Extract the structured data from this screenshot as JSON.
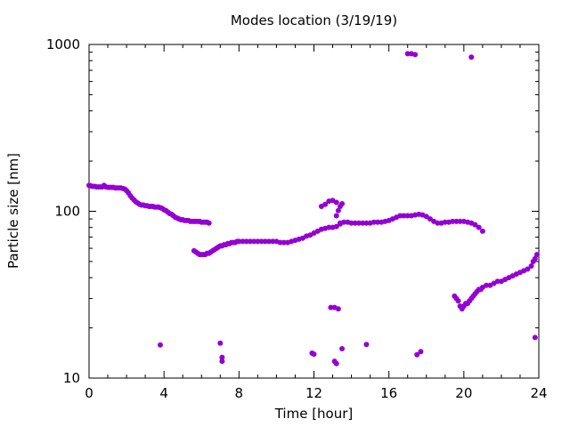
{
  "chart_data": {
    "type": "scatter",
    "title": "Modes location (3/19/19)",
    "xlabel": "Time [hour]",
    "ylabel": "Particle size [nm]",
    "xlim": [
      0,
      24
    ],
    "ylim": [
      10,
      1000
    ],
    "yscale": "log",
    "grid": false,
    "x_ticks": [
      0,
      4,
      8,
      12,
      16,
      20,
      24
    ],
    "x_tick_labels": [
      "0",
      "4",
      "8",
      "12",
      "16",
      "20",
      "24"
    ],
    "y_ticks": [
      10,
      100,
      1000
    ],
    "y_tick_labels": [
      "10",
      "100",
      "1000"
    ],
    "marker_color": "#9400d3",
    "series": [
      {
        "points": [
          [
            0.0,
            143
          ],
          [
            0.1,
            142
          ],
          [
            0.2,
            141
          ],
          [
            0.3,
            141
          ],
          [
            0.4,
            140
          ],
          [
            0.5,
            140
          ],
          [
            0.6,
            140
          ],
          [
            0.7,
            140
          ],
          [
            0.8,
            143
          ],
          [
            0.9,
            140
          ],
          [
            1.0,
            139
          ],
          [
            1.1,
            139
          ],
          [
            1.2,
            139
          ],
          [
            1.3,
            139
          ],
          [
            1.4,
            138
          ],
          [
            1.5,
            138
          ],
          [
            1.6,
            138
          ],
          [
            1.7,
            138
          ],
          [
            1.8,
            137
          ],
          [
            1.9,
            136
          ],
          [
            2.0,
            133
          ],
          [
            2.1,
            129
          ],
          [
            2.2,
            124
          ],
          [
            2.3,
            120
          ],
          [
            2.4,
            117
          ],
          [
            2.5,
            114
          ],
          [
            2.6,
            112
          ],
          [
            2.7,
            110
          ],
          [
            2.8,
            109
          ],
          [
            2.9,
            109
          ],
          [
            3.0,
            108
          ],
          [
            3.1,
            108
          ],
          [
            3.2,
            107
          ],
          [
            3.3,
            107
          ],
          [
            3.4,
            107
          ],
          [
            3.5,
            106
          ],
          [
            3.6,
            106
          ],
          [
            3.7,
            106
          ],
          [
            3.8,
            105
          ],
          [
            3.9,
            104
          ],
          [
            4.0,
            102
          ],
          [
            4.1,
            101
          ],
          [
            4.2,
            99
          ],
          [
            4.3,
            97
          ],
          [
            4.4,
            96
          ],
          [
            4.5,
            94
          ],
          [
            4.6,
            92
          ],
          [
            4.7,
            91
          ],
          [
            4.8,
            90
          ],
          [
            4.9,
            89
          ],
          [
            5.0,
            89
          ],
          [
            5.1,
            88
          ],
          [
            5.2,
            88
          ],
          [
            5.3,
            88
          ],
          [
            5.4,
            87
          ],
          [
            5.5,
            87
          ],
          [
            5.6,
            87
          ],
          [
            5.7,
            87
          ],
          [
            5.8,
            87
          ],
          [
            5.9,
            87
          ],
          [
            6.0,
            86
          ],
          [
            6.1,
            86
          ],
          [
            6.2,
            86
          ],
          [
            6.3,
            86
          ],
          [
            6.4,
            85
          ],
          [
            5.6,
            58
          ],
          [
            5.7,
            57
          ],
          [
            5.8,
            56
          ],
          [
            5.9,
            55
          ],
          [
            6.0,
            55
          ],
          [
            6.1,
            55
          ],
          [
            6.2,
            55
          ],
          [
            6.3,
            56
          ],
          [
            6.4,
            56
          ],
          [
            6.5,
            57
          ],
          [
            6.6,
            58
          ],
          [
            6.7,
            59
          ],
          [
            6.8,
            60
          ],
          [
            6.9,
            61
          ],
          [
            7.0,
            62
          ],
          [
            7.1,
            62
          ],
          [
            7.2,
            63
          ],
          [
            7.3,
            63
          ],
          [
            7.4,
            64
          ],
          [
            7.5,
            64
          ],
          [
            7.6,
            65
          ],
          [
            7.7,
            65
          ],
          [
            7.8,
            65
          ],
          [
            7.9,
            66
          ],
          [
            8.0,
            66
          ],
          [
            8.2,
            66
          ],
          [
            8.4,
            66
          ],
          [
            8.6,
            66
          ],
          [
            8.8,
            66
          ],
          [
            9.0,
            66
          ],
          [
            9.2,
            66
          ],
          [
            9.4,
            66
          ],
          [
            9.6,
            66
          ],
          [
            9.8,
            66
          ],
          [
            10.0,
            66
          ],
          [
            10.2,
            65
          ],
          [
            10.4,
            65
          ],
          [
            10.6,
            65
          ],
          [
            10.8,
            66
          ],
          [
            11.0,
            67
          ],
          [
            11.2,
            68
          ],
          [
            11.4,
            69
          ],
          [
            11.6,
            71
          ],
          [
            11.8,
            72
          ],
          [
            12.0,
            74
          ],
          [
            12.2,
            76
          ],
          [
            12.4,
            78
          ],
          [
            12.6,
            79
          ],
          [
            12.8,
            80
          ],
          [
            13.0,
            80
          ],
          [
            13.2,
            81
          ],
          [
            13.4,
            84
          ],
          [
            13.6,
            86
          ],
          [
            13.8,
            86
          ],
          [
            14.0,
            85
          ],
          [
            14.2,
            85
          ],
          [
            14.4,
            85
          ],
          [
            14.6,
            85
          ],
          [
            14.8,
            85
          ],
          [
            15.0,
            85
          ],
          [
            15.2,
            86
          ],
          [
            15.4,
            86
          ],
          [
            15.6,
            86
          ],
          [
            15.8,
            87
          ],
          [
            16.0,
            88
          ],
          [
            16.2,
            90
          ],
          [
            16.4,
            92
          ],
          [
            16.6,
            94
          ],
          [
            16.8,
            94
          ],
          [
            17.0,
            94
          ],
          [
            17.2,
            94
          ],
          [
            17.4,
            95
          ],
          [
            17.6,
            96
          ],
          [
            17.8,
            95
          ],
          [
            18.0,
            93
          ],
          [
            18.2,
            90
          ],
          [
            18.4,
            87
          ],
          [
            18.6,
            85
          ],
          [
            18.8,
            85
          ],
          [
            19.0,
            86
          ],
          [
            19.2,
            86
          ],
          [
            19.4,
            87
          ],
          [
            19.6,
            87
          ],
          [
            19.8,
            87
          ],
          [
            20.0,
            87
          ],
          [
            20.2,
            86
          ],
          [
            20.4,
            85
          ],
          [
            20.6,
            83
          ],
          [
            20.8,
            80
          ],
          [
            21.0,
            76
          ],
          [
            12.4,
            107
          ],
          [
            12.6,
            110
          ],
          [
            12.8,
            115
          ],
          [
            13.0,
            116
          ],
          [
            13.2,
            113
          ],
          [
            13.3,
            101
          ],
          [
            13.2,
            94
          ],
          [
            13.4,
            85
          ],
          [
            13.4,
            107
          ],
          [
            13.5,
            111
          ],
          [
            19.5,
            31
          ],
          [
            19.6,
            30
          ],
          [
            19.7,
            29
          ],
          [
            19.8,
            27
          ],
          [
            19.9,
            26
          ],
          [
            20.0,
            27
          ],
          [
            20.1,
            28
          ],
          [
            20.2,
            28
          ],
          [
            20.3,
            29
          ],
          [
            20.4,
            30
          ],
          [
            20.5,
            31
          ],
          [
            20.6,
            32
          ],
          [
            20.7,
            33
          ],
          [
            20.8,
            34
          ],
          [
            20.9,
            34
          ],
          [
            21.0,
            35
          ],
          [
            21.2,
            36
          ],
          [
            21.4,
            36
          ],
          [
            21.6,
            37
          ],
          [
            21.8,
            38
          ],
          [
            22.0,
            38
          ],
          [
            22.2,
            39
          ],
          [
            22.4,
            40
          ],
          [
            22.6,
            41
          ],
          [
            22.8,
            42
          ],
          [
            23.0,
            43
          ],
          [
            23.2,
            44
          ],
          [
            23.4,
            45
          ],
          [
            23.6,
            47
          ],
          [
            23.7,
            50
          ],
          [
            23.8,
            52
          ],
          [
            23.9,
            55
          ],
          [
            12.9,
            26.5
          ],
          [
            13.1,
            26.5
          ],
          [
            13.3,
            26.0
          ],
          [
            3.8,
            15.8
          ],
          [
            7.0,
            16.2
          ],
          [
            7.1,
            13.3
          ],
          [
            7.1,
            12.6
          ],
          [
            11.9,
            14.1
          ],
          [
            12.0,
            13.9
          ],
          [
            13.1,
            12.6
          ],
          [
            13.2,
            12.2
          ],
          [
            13.5,
            15.0
          ],
          [
            14.8,
            15.9
          ],
          [
            17.5,
            13.8
          ],
          [
            17.7,
            14.4
          ],
          [
            23.8,
            17.5
          ],
          [
            17.0,
            880
          ],
          [
            17.2,
            880
          ],
          [
            17.4,
            870
          ],
          [
            20.4,
            840
          ]
        ]
      }
    ]
  }
}
